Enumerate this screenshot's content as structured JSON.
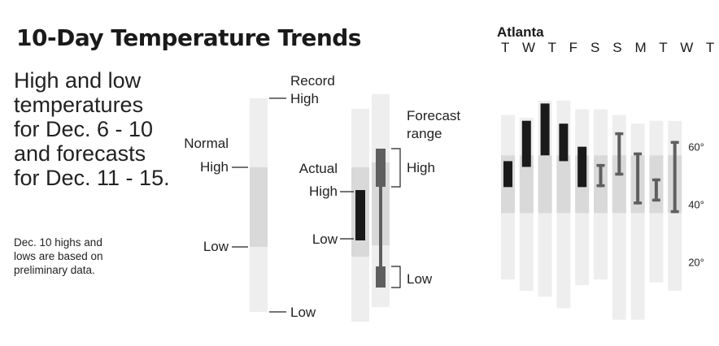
{
  "title": "10-Day Temperature Trends",
  "subtitle_lines": [
    "High and low",
    "temperatures",
    "for Dec. 6 - 10",
    "and forecasts",
    "for Dec. 11 - 15."
  ],
  "note_lines": [
    "Dec. 10 highs and",
    "lows are based on",
    "preliminary data."
  ],
  "legend": {
    "record_line1": "Record",
    "record_line2": "High",
    "record_low": "Low",
    "normal": "Normal",
    "normal_high": "High",
    "normal_low": "Low",
    "actual": "Actual",
    "actual_high": "High",
    "actual_low": "Low",
    "forecast_line1": "Forecast",
    "forecast_line2": "range",
    "forecast_high": "High",
    "forecast_low": "Low"
  },
  "colors": {
    "record": "#eeeeee",
    "normal": "#d9d9d9",
    "actual": "#1a1a1a",
    "forecast": "#5f5f5f"
  },
  "chart_data": {
    "type": "bar",
    "city": "Atlanta",
    "day_labels": "T W T F S S M T W T",
    "categories": [
      "T",
      "W",
      "T",
      "F",
      "S",
      "S",
      "M",
      "T",
      "W",
      "T"
    ],
    "y_ticks": [
      20,
      40,
      60
    ],
    "y_tick_labels": [
      "20°",
      "40°",
      "60°"
    ],
    "ylim": [
      7,
      83
    ],
    "record_high": [
      71,
      70,
      76,
      76,
      73,
      73,
      71,
      68,
      69,
      69
    ],
    "record_low": [
      14,
      10,
      8,
      4,
      12,
      14,
      0,
      0,
      13,
      10
    ],
    "normal_high": [
      57,
      57,
      57,
      57,
      57,
      57,
      57,
      57,
      57,
      57
    ],
    "normal_low": [
      37,
      37,
      37,
      37,
      37,
      37,
      37,
      37,
      37,
      37
    ],
    "series": [
      {
        "name": "Actual",
        "kind": "actual",
        "high": [
          55,
          69,
          75,
          68,
          60,
          null,
          null,
          null,
          null,
          null
        ],
        "low": [
          46,
          53,
          57,
          55,
          46,
          null,
          null,
          null,
          null,
          null
        ]
      },
      {
        "name": "Forecast range",
        "kind": "forecast",
        "high": [
          null,
          null,
          null,
          null,
          null,
          54,
          65,
          58,
          49,
          62
        ],
        "low": [
          null,
          null,
          null,
          null,
          null,
          46,
          50,
          40,
          41,
          37
        ]
      }
    ]
  }
}
